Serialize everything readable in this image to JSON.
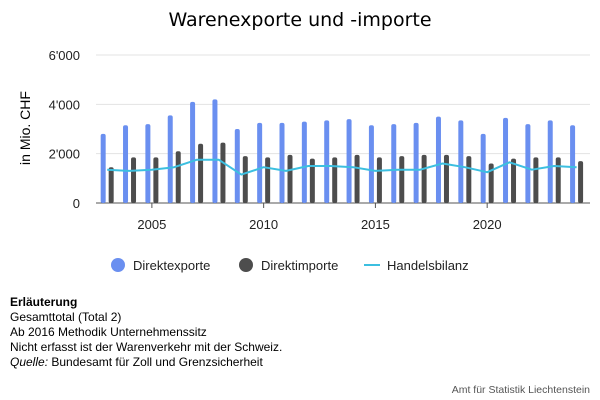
{
  "chart_data": {
    "type": "bar",
    "title": "Warenexporte und -importe",
    "ylabel": "in Mio. CHF",
    "xlabel": "",
    "ylim": [
      0,
      6000
    ],
    "yticks": [
      0,
      2000,
      4000,
      6000
    ],
    "ytick_labels": [
      "0",
      "2'000",
      "4'000",
      "6'000"
    ],
    "xticks": [
      2005,
      2010,
      2015,
      2020
    ],
    "xtick_labels": [
      "2005",
      "2010",
      "2015",
      "2020"
    ],
    "grid": "horizontal",
    "legend_position": "bottom",
    "x": [
      2003,
      2004,
      2005,
      2006,
      2007,
      2008,
      2009,
      2010,
      2011,
      2012,
      2013,
      2014,
      2015,
      2016,
      2017,
      2018,
      2019,
      2020,
      2021,
      2022,
      2023,
      2024
    ],
    "series": [
      {
        "name": "Direktexporte",
        "kind": "bar",
        "color": "#6a8ff0",
        "values": [
          2800,
          3150,
          3200,
          3550,
          4100,
          4200,
          3000,
          3250,
          3250,
          3300,
          3350,
          3400,
          3150,
          3200,
          3250,
          3500,
          3350,
          2800,
          3450,
          3200,
          3350,
          3150
        ]
      },
      {
        "name": "Direktimporte",
        "kind": "bar",
        "color": "#4d4d4d",
        "values": [
          1450,
          1850,
          1850,
          2100,
          2400,
          2450,
          1900,
          1850,
          1950,
          1800,
          1850,
          1950,
          1850,
          1900,
          1950,
          1950,
          1900,
          1600,
          1800,
          1850,
          1850,
          1700
        ]
      },
      {
        "name": "Handelsbilanz",
        "kind": "line",
        "color": "#3cbfe0",
        "values": [
          1350,
          1300,
          1350,
          1450,
          1750,
          1750,
          1150,
          1450,
          1300,
          1500,
          1500,
          1450,
          1300,
          1350,
          1350,
          1600,
          1450,
          1250,
          1650,
          1350,
          1500,
          1450
        ]
      }
    ]
  },
  "notes": {
    "heading": "Erläuterung",
    "lines": [
      "Gesamttotal (Total 2)",
      "Ab 2016 Methodik Unternehmenssitz",
      "Nicht erfasst ist der Warenverkehr mit der Schweiz."
    ],
    "source_label": "Quelle:",
    "source_text": "Bundesamt für Zoll und Grenzsicherheit"
  },
  "credit": "Amt für Statistik Liechtenstein"
}
